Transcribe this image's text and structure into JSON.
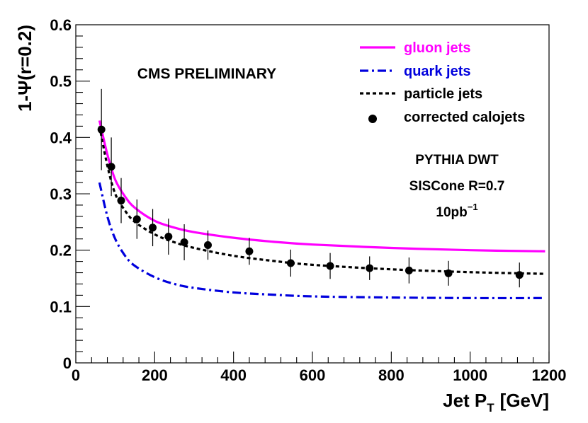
{
  "chart_data": {
    "type": "line",
    "title": "",
    "xlabel": "Jet P",
    "xlabel_sub": "T",
    "xlabel_unit": "[GeV]",
    "ylabel": "1-Ψ(r=0.2)",
    "xlim": [
      0,
      1200
    ],
    "ylim": [
      0,
      0.6
    ],
    "x_ticks": [
      0,
      200,
      400,
      600,
      800,
      1000,
      1200
    ],
    "x_tick_labels": [
      "0",
      "200",
      "400",
      "600",
      "800",
      "1000",
      "1200"
    ],
    "y_ticks": [
      0,
      0.1,
      0.2,
      0.3,
      0.4,
      0.5,
      0.6
    ],
    "y_tick_labels": [
      "0",
      "0.1",
      "0.2",
      "0.3",
      "0.4",
      "0.5",
      "0.6"
    ],
    "grid": false,
    "legend_position": "top-right",
    "series": [
      {
        "name": "gluon jets",
        "style": "solid",
        "color": "#ff00ff",
        "x": [
          60,
          80,
          100,
          125,
          150,
          200,
          250,
          300,
          400,
          500,
          600,
          800,
          1000,
          1190
        ],
        "values": [
          0.43,
          0.37,
          0.325,
          0.295,
          0.275,
          0.252,
          0.24,
          0.232,
          0.222,
          0.215,
          0.21,
          0.204,
          0.2,
          0.198
        ]
      },
      {
        "name": "quark jets",
        "style": "dashdot",
        "color": "#0000dd",
        "x": [
          60,
          80,
          100,
          125,
          150,
          200,
          250,
          300,
          400,
          500,
          600,
          800,
          1000,
          1190
        ],
        "values": [
          0.32,
          0.26,
          0.22,
          0.19,
          0.172,
          0.152,
          0.14,
          0.133,
          0.125,
          0.121,
          0.118,
          0.116,
          0.115,
          0.115
        ]
      },
      {
        "name": "particle jets",
        "style": "dotted",
        "color": "#000000",
        "x": [
          60,
          80,
          100,
          125,
          150,
          200,
          250,
          300,
          400,
          500,
          600,
          800,
          1000,
          1190
        ],
        "values": [
          0.42,
          0.35,
          0.3,
          0.27,
          0.25,
          0.228,
          0.214,
          0.204,
          0.19,
          0.181,
          0.174,
          0.166,
          0.161,
          0.158
        ]
      },
      {
        "name": "corrected calojets",
        "style": "markers",
        "color": "#000000",
        "x": [
          65,
          90,
          115,
          155,
          195,
          235,
          275,
          335,
          440,
          545,
          645,
          745,
          845,
          945,
          1125
        ],
        "values": [
          0.414,
          0.348,
          0.288,
          0.255,
          0.24,
          0.224,
          0.214,
          0.209,
          0.198,
          0.177,
          0.172,
          0.168,
          0.164,
          0.159,
          0.156
        ],
        "err": [
          0.072,
          0.052,
          0.04,
          0.035,
          0.033,
          0.032,
          0.032,
          0.026,
          0.024,
          0.024,
          0.023,
          0.021,
          0.023,
          0.022,
          0.022
        ]
      }
    ],
    "annotations": {
      "cms": "CMS PRELIMINARY",
      "generator": "PYTHIA DWT",
      "algorithm": "SISCone R=0.7",
      "lumi_base": "10pb",
      "lumi_exp": "−1"
    }
  }
}
